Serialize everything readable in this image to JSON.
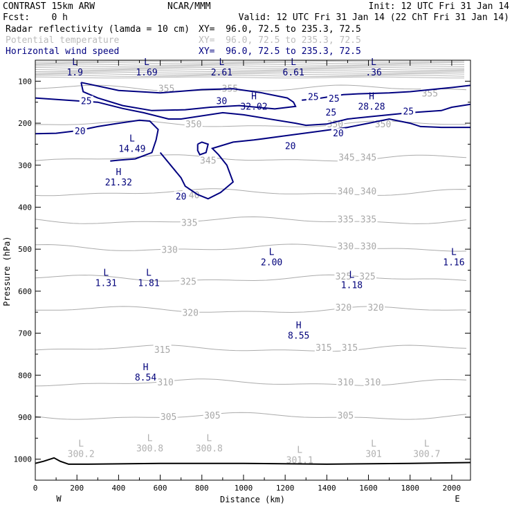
{
  "header": {
    "model": "CONTRAST 15km ARW",
    "org": "NCAR/MMM",
    "init": "Init: 12 UTC Fri 31 Jan 14",
    "fcst": "Fcst:    0 h",
    "valid": "Valid: 12 UTC Fri 31 Jan 14 (22 ChT Fri 31 Jan 14)",
    "fields": [
      {
        "name": "Radar reflectivity (lamda = 10 cm)",
        "xy": "XY=  96.0, 72.5 to 235.3, 72.5",
        "color": "#000000"
      },
      {
        "name": "Potential temperature",
        "xy": "XY=  96.0, 72.5 to 235.3, 72.5",
        "color": "#bbbbbb"
      },
      {
        "name": "Horizontal wind speed",
        "xy": "XY=  96.0, 72.5 to 235.3, 72.5",
        "color": "#000080"
      }
    ]
  },
  "chart_data": {
    "type": "contour-cross-section",
    "xlabel": "Distance (km)",
    "ylabel": "Pressure (hPa)",
    "xlim": [
      0,
      2090
    ],
    "ylim": [
      1050,
      50
    ],
    "x_ticks": [
      0,
      200,
      400,
      600,
      800,
      1000,
      1200,
      1400,
      1600,
      1800,
      2000
    ],
    "y_ticks": [
      100,
      200,
      300,
      400,
      500,
      600,
      700,
      800,
      900,
      1000
    ],
    "end_labels": {
      "left": "W",
      "right": "E"
    },
    "colors": {
      "wind": "#000080",
      "theta": "#aaaaaa",
      "terrain": "#000000"
    },
    "wind_contours": [
      {
        "value": 30,
        "label": "30",
        "points": [
          [
            220,
            103
          ],
          [
            400,
            122
          ],
          [
            600,
            128
          ],
          [
            800,
            120
          ],
          [
            950,
            118
          ],
          [
            1080,
            127
          ],
          [
            1210,
            140
          ],
          [
            1240,
            150
          ],
          [
            1250,
            160
          ],
          [
            1150,
            166
          ],
          [
            980,
            158
          ],
          [
            840,
            162
          ],
          [
            720,
            168
          ],
          [
            560,
            170
          ],
          [
            420,
            158
          ],
          [
            300,
            140
          ],
          [
            230,
            125
          ],
          [
            220,
            103
          ]
        ]
      },
      {
        "value": 25,
        "label": "25",
        "points": [
          [
            0,
            140
          ],
          [
            150,
            145
          ],
          [
            300,
            150
          ],
          [
            420,
            165
          ],
          [
            520,
            175
          ],
          [
            640,
            190
          ],
          [
            700,
            190
          ],
          [
            900,
            175
          ],
          [
            1000,
            180
          ],
          [
            1100,
            188
          ],
          [
            1250,
            200
          ],
          [
            1300,
            205
          ],
          [
            1400,
            202
          ],
          [
            1500,
            190
          ],
          [
            1600,
            185
          ],
          [
            1700,
            180
          ],
          [
            1800,
            175
          ],
          [
            1950,
            170
          ],
          [
            2000,
            162
          ],
          [
            2090,
            155
          ]
        ]
      },
      {
        "value": 20,
        "label": "20",
        "points": [
          [
            0,
            225
          ],
          [
            100,
            224
          ],
          [
            200,
            218
          ],
          [
            300,
            208
          ],
          [
            400,
            200
          ],
          [
            500,
            193
          ],
          [
            550,
            195
          ],
          [
            590,
            215
          ],
          [
            580,
            240
          ],
          [
            560,
            270
          ],
          [
            480,
            285
          ],
          [
            400,
            288
          ],
          [
            360,
            290
          ]
        ]
      },
      {
        "value": 20,
        "label": "20",
        "points": [
          [
            600,
            270
          ],
          [
            700,
            330
          ],
          [
            720,
            350
          ],
          [
            780,
            370
          ],
          [
            830,
            380
          ],
          [
            890,
            365
          ],
          [
            950,
            340
          ],
          [
            920,
            300
          ],
          [
            880,
            275
          ],
          [
            850,
            260
          ],
          [
            950,
            245
          ],
          [
            1050,
            240
          ],
          [
            1200,
            230
          ],
          [
            1350,
            220
          ],
          [
            1500,
            210
          ],
          [
            1600,
            200
          ],
          [
            1700,
            190
          ],
          [
            1800,
            200
          ],
          [
            1850,
            208
          ],
          [
            1950,
            210
          ],
          [
            2090,
            210
          ]
        ]
      },
      {
        "value": 25,
        "label": "25",
        "points": [
          [
            1280,
            145
          ],
          [
            1350,
            142
          ],
          [
            1400,
            138
          ],
          [
            1480,
            132
          ],
          [
            1550,
            130
          ],
          [
            1700,
            128
          ],
          [
            1800,
            125
          ],
          [
            1900,
            120
          ],
          [
            2000,
            115
          ],
          [
            2090,
            110
          ]
        ]
      },
      {
        "value": 30,
        "label": "30",
        "points": [
          [
            780,
            250
          ],
          [
            800,
            245
          ],
          [
            830,
            250
          ],
          [
            820,
            270
          ],
          [
            790,
            275
          ],
          [
            780,
            265
          ],
          [
            780,
            250
          ]
        ]
      }
    ],
    "wind_labels": [
      {
        "text": "25",
        "x": 245,
        "y": 148
      },
      {
        "text": "30",
        "x": 895,
        "y": 148
      },
      {
        "text": "25",
        "x": 1335,
        "y": 138
      },
      {
        "text": "25",
        "x": 1435,
        "y": 142
      },
      {
        "text": "25",
        "x": 1792,
        "y": 173
      },
      {
        "text": "25",
        "x": 1420,
        "y": 175
      },
      {
        "text": "20",
        "x": 215,
        "y": 220
      },
      {
        "text": "20",
        "x": 1225,
        "y": 255
      },
      {
        "text": "20",
        "x": 1455,
        "y": 225
      },
      {
        "text": "20",
        "x": 700,
        "y": 375
      }
    ],
    "wind_extrema": [
      {
        "kind": "L",
        "value": "1.9",
        "x": 190,
        "y": 68
      },
      {
        "kind": "L",
        "value": "1.69",
        "x": 535,
        "y": 68
      },
      {
        "kind": "L",
        "value": "2.61",
        "x": 895,
        "y": 68
      },
      {
        "kind": "L",
        "value": "6.61",
        "x": 1240,
        "y": 68
      },
      {
        "kind": "L",
        "value": ".36",
        "x": 1625,
        "y": 68
      },
      {
        "kind": "H",
        "value": "32.02",
        "x": 1050,
        "y": 150
      },
      {
        "kind": "H",
        "value": "28.28",
        "x": 1615,
        "y": 150
      },
      {
        "kind": "L",
        "value": "14.49",
        "x": 465,
        "y": 250
      },
      {
        "kind": "H",
        "value": "21.32",
        "x": 400,
        "y": 330
      },
      {
        "kind": "L",
        "value": "2.00",
        "x": 1135,
        "y": 520
      },
      {
        "kind": "L",
        "value": "1.31",
        "x": 340,
        "y": 570
      },
      {
        "kind": "L",
        "value": "1.81",
        "x": 545,
        "y": 570
      },
      {
        "kind": "L",
        "value": "1.18",
        "x": 1520,
        "y": 575
      },
      {
        "kind": "L",
        "value": "1.16",
        "x": 2010,
        "y": 520
      },
      {
        "kind": "H",
        "value": "8.55",
        "x": 1265,
        "y": 695
      },
      {
        "kind": "H",
        "value": "8.54",
        "x": 530,
        "y": 795
      }
    ],
    "theta_contours": [
      {
        "value": "355",
        "labels": [
          [
            630,
            118
          ],
          [
            935,
            118
          ],
          [
            1895,
            130
          ]
        ]
      },
      {
        "value": "350",
        "labels": [
          [
            760,
            203
          ],
          [
            1440,
            203
          ],
          [
            1670,
            203
          ]
        ]
      },
      {
        "value": "345",
        "labels": [
          [
            830,
            290
          ],
          [
            1495,
            282
          ],
          [
            1600,
            282
          ]
        ]
      },
      {
        "value": "340",
        "labels": [
          [
            750,
            372
          ],
          [
            1490,
            363
          ],
          [
            1600,
            363
          ]
        ]
      },
      {
        "value": "335",
        "labels": [
          [
            740,
            438
          ],
          [
            1490,
            430
          ],
          [
            1600,
            430
          ]
        ]
      },
      {
        "value": "330",
        "labels": [
          [
            645,
            502
          ],
          [
            1490,
            494
          ],
          [
            1600,
            494
          ]
        ]
      },
      {
        "value": "325",
        "labels": [
          [
            735,
            578
          ],
          [
            1480,
            566
          ],
          [
            1595,
            566
          ]
        ]
      },
      {
        "value": "320",
        "labels": [
          [
            745,
            652
          ],
          [
            1480,
            640
          ],
          [
            1635,
            640
          ]
        ]
      },
      {
        "value": "315",
        "labels": [
          [
            610,
            740
          ],
          [
            1385,
            735
          ],
          [
            1510,
            735
          ]
        ]
      },
      {
        "value": "310",
        "labels": [
          [
            625,
            818
          ],
          [
            1490,
            818
          ],
          [
            1620,
            818
          ]
        ]
      },
      {
        "value": "305",
        "labels": [
          [
            640,
            900
          ],
          [
            850,
            897
          ],
          [
            1490,
            897
          ]
        ]
      }
    ],
    "theta_levels_p": {
      "355": 118,
      "350": 203,
      "345": 284,
      "340": 365,
      "335": 432,
      "330": 497,
      "325": 570,
      "320": 645,
      "315": 737,
      "310": 818,
      "305": 898
    },
    "theta_extrema": [
      {
        "kind": "L",
        "value": "300.2",
        "x": 220,
        "y": 993
      },
      {
        "kind": "L",
        "value": "300.8",
        "x": 550,
        "y": 980
      },
      {
        "kind": "L",
        "value": "300.8",
        "x": 835,
        "y": 980
      },
      {
        "kind": "L",
        "value": "301.1",
        "x": 1270,
        "y": 1008
      },
      {
        "kind": "L",
        "value": "301",
        "x": 1625,
        "y": 993
      },
      {
        "kind": "L",
        "value": "300.7",
        "x": 1880,
        "y": 993
      }
    ],
    "terrain": [
      [
        0,
        1010
      ],
      [
        40,
        1005
      ],
      [
        90,
        997
      ],
      [
        120,
        1005
      ],
      [
        160,
        1012
      ],
      [
        250,
        1012
      ],
      [
        600,
        1010
      ],
      [
        1000,
        1010
      ],
      [
        1400,
        1012
      ],
      [
        1800,
        1010
      ],
      [
        2090,
        1008
      ]
    ]
  }
}
